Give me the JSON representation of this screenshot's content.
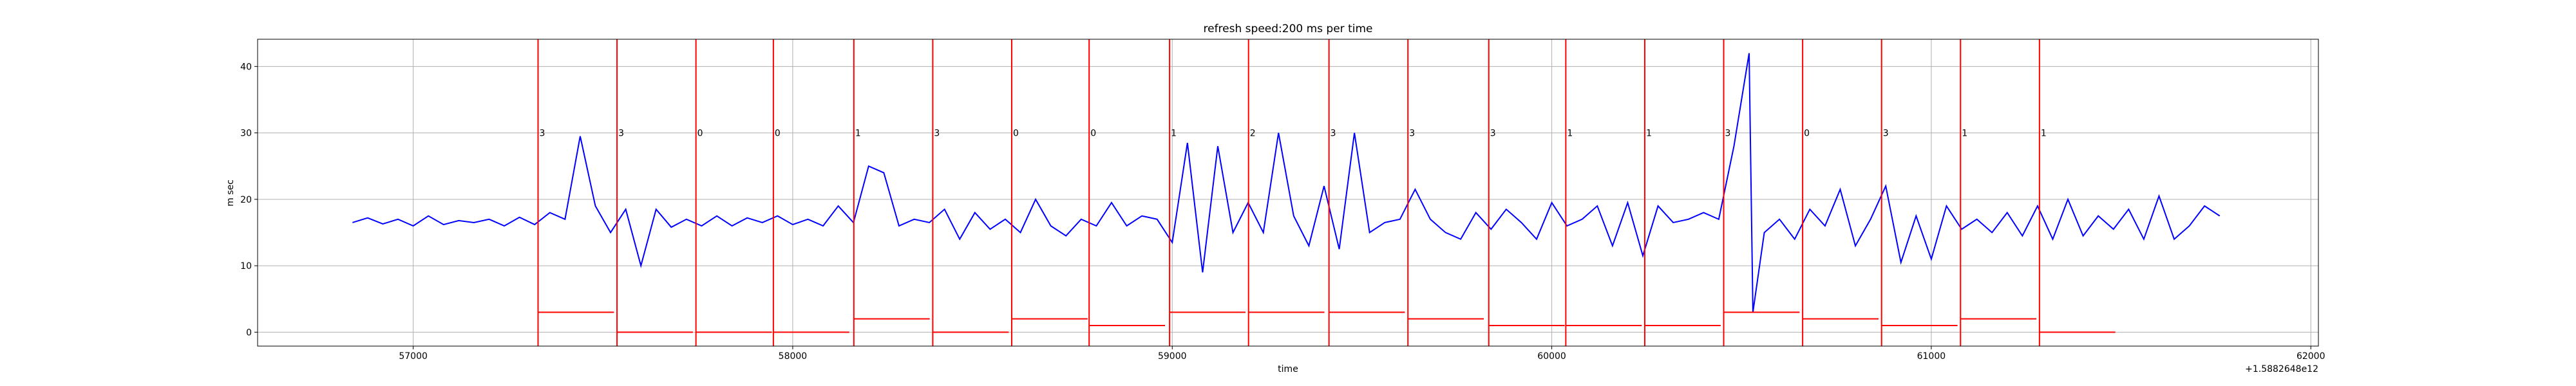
{
  "chart_data": {
    "type": "line",
    "title": "refresh speed:200 ms per time",
    "xlabel": "time",
    "ylabel": "m sec",
    "x_offset_label": "+1.5882648e12",
    "xlim": [
      56590,
      62020
    ],
    "ylim": [
      -2.1,
      44.1
    ],
    "xticks": [
      57000,
      58000,
      59000,
      60000,
      61000,
      62000
    ],
    "yticks": [
      0,
      10,
      20,
      30,
      40
    ],
    "grid": true,
    "color": "#0000ff",
    "event_color": "#ff0000",
    "label_y": 30,
    "x": [
      56840,
      56880,
      56920,
      56960,
      57000,
      57040,
      57080,
      57120,
      57160,
      57200,
      57240,
      57280,
      57320,
      57360,
      57400,
      57440,
      57480,
      57520,
      57560,
      57600,
      57640,
      57680,
      57720,
      57760,
      57800,
      57840,
      57880,
      57920,
      57960,
      58000,
      58040,
      58080,
      58120,
      58160,
      58200,
      58240,
      58280,
      58320,
      58360,
      58400,
      58440,
      58480,
      58520,
      58560,
      58600,
      58640,
      58680,
      58720,
      58760,
      58800,
      58840,
      58880,
      58920,
      58960,
      59000,
      59040,
      59080,
      59120,
      59160,
      59200,
      59240,
      59280,
      59320,
      59360,
      59400,
      59440,
      59480,
      59520,
      59560,
      59600,
      59640,
      59680,
      59720,
      59760,
      59800,
      59840,
      59880,
      59920,
      59960,
      60000,
      60040,
      60080,
      60120,
      60160,
      60200,
      60240,
      60280,
      60320,
      60360,
      60400,
      60440,
      60480,
      60520,
      60530,
      60560,
      60600,
      60640,
      60680,
      60720,
      60760,
      60800,
      60840,
      60880,
      60920,
      60960,
      61000,
      61040,
      61080,
      61120,
      61160,
      61200,
      61240,
      61280,
      61320,
      61360,
      61400,
      61440,
      61480,
      61520,
      61560,
      61600,
      61640,
      61680,
      61720,
      61760
    ],
    "values": [
      16.5,
      17.2,
      16.3,
      17.0,
      16.0,
      17.5,
      16.2,
      16.8,
      16.5,
      17.0,
      16.0,
      17.3,
      16.2,
      18.0,
      17.0,
      29.5,
      19.0,
      15.0,
      18.5,
      10.0,
      18.5,
      15.8,
      17.0,
      16.0,
      17.5,
      16.0,
      17.2,
      16.5,
      17.5,
      16.2,
      17.0,
      16.0,
      19.0,
      16.5,
      25.0,
      24.0,
      16.0,
      17.0,
      16.5,
      18.5,
      14.0,
      18.0,
      15.5,
      17.0,
      15.0,
      20.0,
      16.0,
      14.5,
      17.0,
      16.0,
      19.5,
      16.0,
      17.5,
      17.0,
      13.5,
      28.5,
      9.0,
      28.0,
      15.0,
      19.5,
      15.0,
      30.0,
      17.5,
      13.0,
      22.0,
      12.5,
      30.0,
      15.0,
      16.5,
      17.0,
      21.5,
      17.0,
      15.0,
      14.0,
      18.0,
      15.5,
      18.5,
      16.5,
      14.0,
      19.5,
      16.0,
      17.0,
      19.0,
      13.0,
      19.5,
      11.5,
      19.0,
      16.5,
      17.0,
      18.0,
      17.0,
      28.0,
      42.0,
      3.0,
      15.0,
      17.0,
      14.0,
      18.5,
      16.0,
      21.5,
      13.0,
      17.0,
      22.0,
      10.5,
      17.5,
      11.0,
      19.0,
      15.5,
      17.0,
      15.0,
      18.0,
      14.5,
      19.0,
      14.0,
      20.0,
      14.5,
      17.5,
      15.5,
      18.5,
      14.0,
      20.5,
      14.0,
      16.0,
      19.0,
      17.5
    ],
    "events": [
      {
        "x": 57329,
        "end": 57529,
        "label": 3,
        "level": 3
      },
      {
        "x": 57537,
        "end": 57737,
        "label": 3,
        "level": 0
      },
      {
        "x": 57745,
        "end": 57945,
        "label": 0,
        "level": 0
      },
      {
        "x": 57949,
        "end": 58149,
        "label": 0,
        "level": 0
      },
      {
        "x": 58161,
        "end": 58361,
        "label": 1,
        "level": 2
      },
      {
        "x": 58369,
        "end": 58569,
        "label": 3,
        "level": 0
      },
      {
        "x": 58577,
        "end": 58777,
        "label": 0,
        "level": 2
      },
      {
        "x": 58781,
        "end": 58981,
        "label": 0,
        "level": 1
      },
      {
        "x": 58993,
        "end": 59193,
        "label": 1,
        "level": 3
      },
      {
        "x": 59201,
        "end": 59401,
        "label": 2,
        "level": 3
      },
      {
        "x": 59413,
        "end": 59613,
        "label": 3,
        "level": 3
      },
      {
        "x": 59621,
        "end": 59821,
        "label": 3,
        "level": 2
      },
      {
        "x": 59834,
        "end": 60034,
        "label": 3,
        "level": 1
      },
      {
        "x": 60037,
        "end": 60237,
        "label": 1,
        "level": 1
      },
      {
        "x": 60245,
        "end": 60445,
        "label": 1,
        "level": 1
      },
      {
        "x": 60453,
        "end": 60653,
        "label": 3,
        "level": 3
      },
      {
        "x": 60661,
        "end": 60861,
        "label": 0,
        "level": 2
      },
      {
        "x": 60869,
        "end": 61069,
        "label": 3,
        "level": 1
      },
      {
        "x": 61077,
        "end": 61277,
        "label": 1,
        "level": 2
      },
      {
        "x": 61285,
        "end": 61485,
        "label": 1,
        "level": 0
      }
    ]
  }
}
